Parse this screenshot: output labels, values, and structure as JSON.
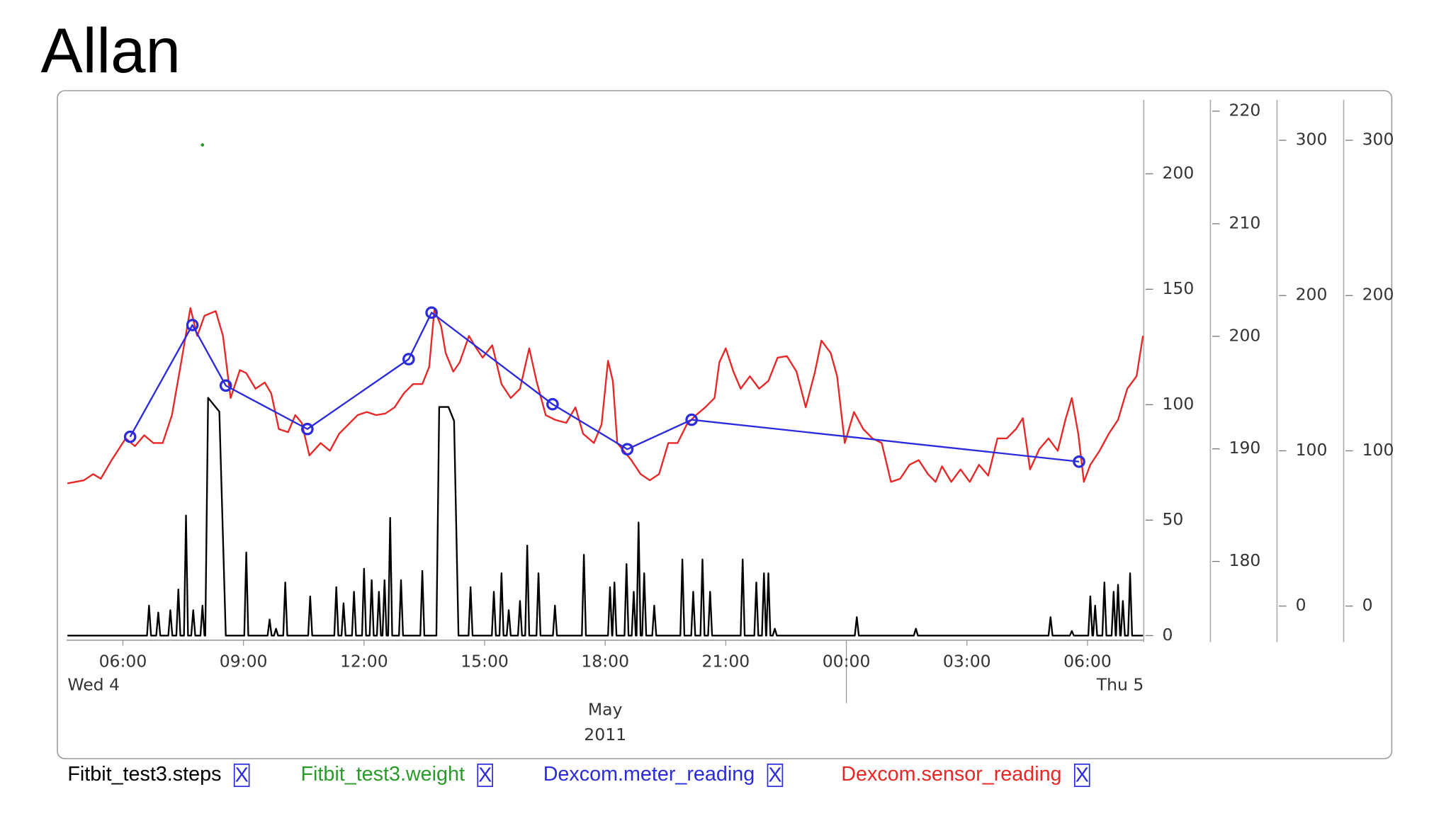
{
  "title": "Allan",
  "chart_data": {
    "type": "line",
    "xlim": [
      4.6,
      31.4
    ],
    "xticks": [
      {
        "value": 6,
        "label": "06:00"
      },
      {
        "value": 9,
        "label": "09:00"
      },
      {
        "value": 12,
        "label": "12:00"
      },
      {
        "value": 15,
        "label": "15:00"
      },
      {
        "value": 18,
        "label": "18:00"
      },
      {
        "value": 21,
        "label": "21:00"
      },
      {
        "value": 24,
        "label": "00:00"
      },
      {
        "value": 27,
        "label": "03:00"
      },
      {
        "value": 30,
        "label": "06:00"
      }
    ],
    "day_labels": [
      "Wed 4",
      "Thu 5"
    ],
    "month_label": "May",
    "year_label": "2011",
    "ylim": [
      -2,
      232
    ],
    "yticks": [
      0,
      50,
      100,
      150,
      200
    ],
    "y2lim": [
      173,
      221
    ],
    "y2ticks": [
      180,
      190,
      200,
      210,
      220
    ],
    "y3lim": [
      -22,
      326
    ],
    "y3ticks": [
      0,
      100,
      200,
      300
    ],
    "y4lim": [
      -22,
      326
    ],
    "y4ticks": [
      0,
      100,
      200,
      300
    ],
    "legend_action_label": "X",
    "series": [
      {
        "name": "Fitbit_test3.steps",
        "color": "#000000",
        "axis": "y",
        "x": [
          4.62,
          6.6,
          6.65,
          6.7,
          6.83,
          6.88,
          6.93,
          7.13,
          7.18,
          7.23,
          7.33,
          7.38,
          7.43,
          7.52,
          7.57,
          7.62,
          7.7,
          7.75,
          7.8,
          7.93,
          7.98,
          8.03,
          8.05,
          8.12,
          8.26,
          8.4,
          8.56,
          9.02,
          9.07,
          9.12,
          9.6,
          9.65,
          9.7,
          9.76,
          9.81,
          9.86,
          9.99,
          10.04,
          10.09,
          10.61,
          10.66,
          10.71,
          11.26,
          11.31,
          11.36,
          11.44,
          11.49,
          11.54,
          11.7,
          11.75,
          11.8,
          11.95,
          12.0,
          12.05,
          12.14,
          12.19,
          12.24,
          12.32,
          12.37,
          12.42,
          12.46,
          12.51,
          12.56,
          12.6,
          12.65,
          12.7,
          12.87,
          12.92,
          12.97,
          13.4,
          13.45,
          13.5,
          13.8,
          13.87,
          14.1,
          14.24,
          14.35,
          14.6,
          14.65,
          14.7,
          15.18,
          15.23,
          15.28,
          15.37,
          15.42,
          15.47,
          15.55,
          15.6,
          15.65,
          15.83,
          15.88,
          15.93,
          16.01,
          16.06,
          16.11,
          16.29,
          16.34,
          16.39,
          16.7,
          16.75,
          16.8,
          17.42,
          17.47,
          17.52,
          18.07,
          18.12,
          18.17,
          18.18,
          18.23,
          18.28,
          18.48,
          18.53,
          18.58,
          18.66,
          18.71,
          18.76,
          18.78,
          18.83,
          18.88,
          18.92,
          18.97,
          19.02,
          19.17,
          19.22,
          19.27,
          19.87,
          19.92,
          19.97,
          20.14,
          20.19,
          20.24,
          20.37,
          20.42,
          20.47,
          20.56,
          20.61,
          20.66,
          21.37,
          21.42,
          21.47,
          21.71,
          21.76,
          21.81,
          21.9,
          21.95,
          22.0,
          22.01,
          22.06,
          22.11,
          22.17,
          22.22,
          22.27,
          24.21,
          24.26,
          24.31,
          25.68,
          25.73,
          25.78,
          29.03,
          29.08,
          29.13,
          29.56,
          29.61,
          29.66,
          30.02,
          30.07,
          30.12,
          30.14,
          30.19,
          30.24,
          30.37,
          30.42,
          30.47,
          30.6,
          30.65,
          30.7,
          30.71,
          30.76,
          30.81,
          30.83,
          30.88,
          30.93,
          31.01,
          31.06,
          31.11,
          31.38
        ],
        "values": [
          0,
          0,
          13,
          0,
          0,
          10,
          0,
          0,
          11,
          0,
          0,
          20,
          0,
          0,
          52,
          0,
          0,
          11,
          0,
          0,
          13,
          0,
          0,
          103,
          100,
          97,
          0,
          0,
          36,
          0,
          0,
          7,
          0,
          0,
          3,
          0,
          0,
          23,
          0,
          0,
          17,
          0,
          0,
          21,
          0,
          0,
          14,
          0,
          0,
          19,
          0,
          0,
          29,
          0,
          0,
          24,
          0,
          0,
          19,
          0,
          0,
          24,
          0,
          0,
          51,
          0,
          0,
          24,
          0,
          0,
          28,
          0,
          0,
          99,
          99,
          93,
          0,
          0,
          21,
          0,
          0,
          19,
          0,
          0,
          27,
          0,
          0,
          11,
          0,
          0,
          15,
          0,
          0,
          39,
          0,
          0,
          27,
          0,
          0,
          13,
          0,
          0,
          35,
          0,
          0,
          21,
          0,
          0,
          23,
          0,
          0,
          31,
          0,
          0,
          19,
          0,
          0,
          49,
          0,
          0,
          27,
          0,
          0,
          13,
          0,
          0,
          33,
          0,
          0,
          19,
          0,
          0,
          33,
          0,
          0,
          19,
          0,
          0,
          33,
          0,
          0,
          23,
          0,
          0,
          27,
          0,
          0,
          27,
          0,
          0,
          3,
          0,
          0,
          8,
          0,
          0,
          3,
          0,
          0,
          8,
          0,
          0,
          2,
          0,
          0,
          17,
          0,
          0,
          13,
          0,
          0,
          23,
          0,
          0,
          19,
          0,
          0,
          22,
          0,
          0,
          15,
          0,
          0,
          27,
          0,
          0
        ]
      },
      {
        "name": "Fitbit_test3.weight",
        "color": "#2a9a2a",
        "axis": "y2",
        "marker": "dot",
        "x": [
          7.98
        ],
        "values": [
          217
        ]
      },
      {
        "name": "Dexcom.meter_reading",
        "color": "#2b2bdd",
        "axis": "y3",
        "marker": "circle",
        "x": [
          6.18,
          7.73,
          8.56,
          10.59,
          13.11,
          13.68,
          16.69,
          18.55,
          20.15,
          29.79
        ],
        "values": [
          109,
          181,
          142,
          114,
          159,
          189,
          130,
          101,
          120,
          93
        ]
      },
      {
        "name": "Dexcom.sensor_reading",
        "color": "#e82626",
        "axis": "y4",
        "x": [
          4.62,
          5.03,
          5.26,
          5.45,
          5.72,
          6.07,
          6.3,
          6.53,
          6.76,
          6.99,
          7.22,
          7.45,
          7.68,
          7.85,
          8.03,
          8.31,
          8.49,
          8.68,
          8.91,
          9.07,
          9.3,
          9.53,
          9.69,
          9.88,
          10.11,
          10.29,
          10.45,
          10.64,
          10.92,
          11.15,
          11.38,
          11.61,
          11.84,
          12.07,
          12.3,
          12.53,
          12.76,
          12.99,
          13.22,
          13.45,
          13.62,
          13.75,
          13.92,
          14.03,
          14.22,
          14.38,
          14.61,
          14.77,
          14.95,
          15.19,
          15.42,
          15.65,
          15.88,
          16.11,
          16.29,
          16.52,
          16.75,
          17.03,
          17.26,
          17.45,
          17.72,
          17.91,
          18.07,
          18.19,
          18.3,
          18.46,
          18.65,
          18.88,
          19.11,
          19.34,
          19.57,
          19.8,
          20.03,
          20.26,
          20.49,
          20.72,
          20.84,
          21.0,
          21.19,
          21.37,
          21.6,
          21.83,
          22.06,
          22.29,
          22.52,
          22.76,
          22.99,
          23.22,
          23.38,
          23.61,
          23.77,
          23.96,
          24.19,
          24.42,
          24.65,
          24.88,
          25.11,
          25.34,
          25.57,
          25.8,
          26.03,
          26.22,
          26.38,
          26.61,
          26.84,
          27.07,
          27.3,
          27.53,
          27.76,
          27.99,
          28.22,
          28.39,
          28.57,
          28.8,
          29.03,
          29.26,
          29.45,
          29.61,
          29.77,
          29.91,
          30.07,
          30.3,
          30.53,
          30.76,
          30.99,
          31.22,
          31.38
        ],
        "values": [
          79,
          81,
          85,
          82,
          94,
          108,
          103,
          110,
          105,
          105,
          123,
          157,
          192,
          174,
          187,
          190,
          174,
          134,
          152,
          150,
          140,
          144,
          137,
          114,
          112,
          123,
          118,
          97,
          105,
          100,
          111,
          117,
          123,
          125,
          123,
          124,
          128,
          137,
          143,
          143,
          154,
          191,
          180,
          163,
          151,
          157,
          174,
          167,
          160,
          168,
          143,
          134,
          140,
          166,
          145,
          123,
          120,
          118,
          128,
          111,
          105,
          117,
          158,
          145,
          105,
          100,
          94,
          85,
          81,
          85,
          105,
          105,
          117,
          123,
          128,
          134,
          157,
          166,
          151,
          140,
          148,
          140,
          145,
          160,
          161,
          151,
          128,
          151,
          171,
          163,
          148,
          105,
          125,
          114,
          108,
          105,
          80,
          82,
          91,
          94,
          85,
          80,
          90,
          80,
          88,
          80,
          91,
          84,
          108,
          108,
          114,
          121,
          88,
          101,
          108,
          100,
          120,
          134,
          111,
          80,
          91,
          100,
          111,
          120,
          140,
          148,
          174
        ]
      }
    ]
  }
}
